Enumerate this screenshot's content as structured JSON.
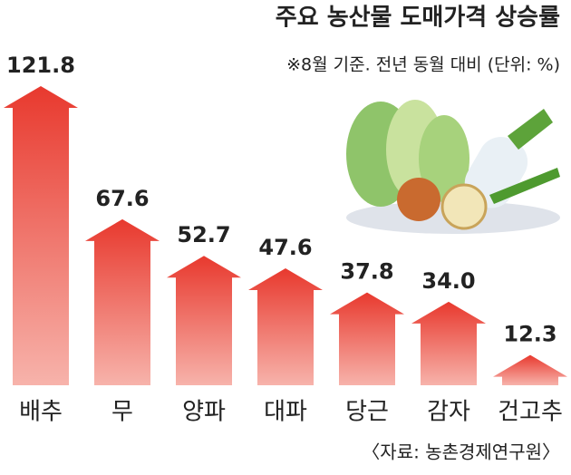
{
  "chart_data": {
    "type": "arrow-bar",
    "title": "주요 농산물 도매가격 상승률",
    "subtitle": "※8월 기준. 전년 동월 대비 (단위: %)",
    "source": "〈자료: 농촌경제연구원〉",
    "categories": [
      "배추",
      "무",
      "양파",
      "대파",
      "당근",
      "감자",
      "건고추"
    ],
    "values": [
      121.8,
      67.6,
      52.7,
      47.6,
      37.8,
      34.0,
      12.3
    ],
    "value_labels": [
      "121.8",
      "67.6",
      "52.7",
      "47.6",
      "37.8",
      "34.0",
      "12.3"
    ],
    "color": "#e8392e"
  }
}
